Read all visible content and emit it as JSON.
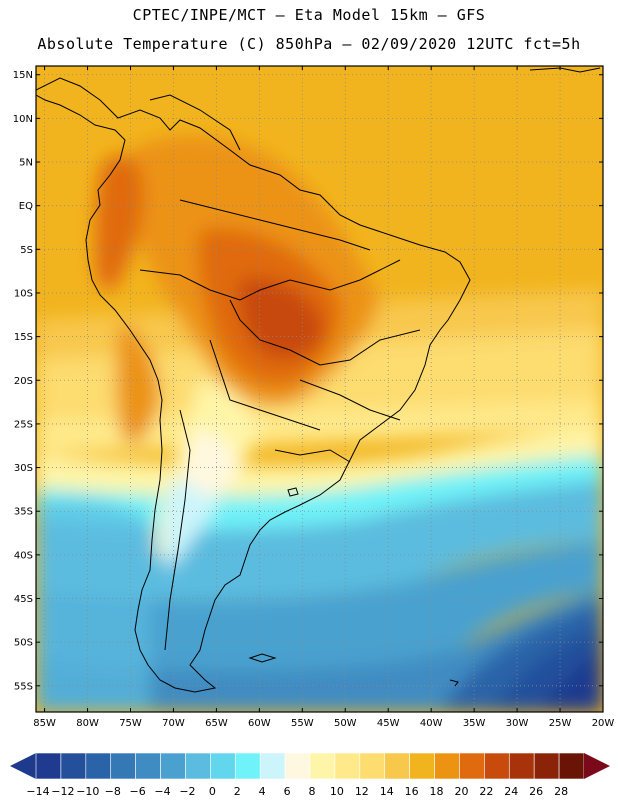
{
  "header": {
    "line1": "CPTEC/INPE/MCT –  Eta Model 15km – GFS",
    "line2": "Absolute Temperature (C) 850hPa – 02/09/2020 12UTC fct=5h"
  },
  "map": {
    "lat_labels": [
      "15N",
      "10N",
      "5N",
      "EQ",
      "5S",
      "10S",
      "15S",
      "20S",
      "25S",
      "30S",
      "35S",
      "40S",
      "45S",
      "50S",
      "55S"
    ],
    "lon_labels": [
      "85W",
      "80W",
      "75W",
      "70W",
      "65W",
      "60W",
      "55W",
      "50W",
      "45W",
      "40W",
      "35W",
      "30W",
      "25W",
      "20W"
    ],
    "lon_range": [
      -86,
      -20
    ],
    "lat_range": [
      -58,
      16
    ]
  },
  "colorbar": {
    "labels": [
      "-14",
      "-12",
      "-10",
      "-8",
      "-6",
      "-4",
      "-2",
      "0",
      "2",
      "4",
      "6",
      "8",
      "10",
      "12",
      "14",
      "16",
      "18",
      "20",
      "22",
      "24",
      "26",
      "28"
    ],
    "colors": {
      "low_arrow": "#1e3a8c",
      "steps": [
        "#1f3b8f",
        "#24509b",
        "#2a63a8",
        "#3478b6",
        "#3f8cc2",
        "#4aa1cf",
        "#5bbcdf",
        "#62d6ec",
        "#6ff2f8",
        "#ccf5fb",
        "#fff8e0",
        "#fff5a8",
        "#ffe98a",
        "#fddc70",
        "#f8c84d",
        "#f2b41e",
        "#ec9312",
        "#e06a0e",
        "#c84a0c",
        "#a8330a",
        "#8a2308",
        "#6a1406"
      ],
      "high_arrow": "#7a0a1a"
    }
  }
}
